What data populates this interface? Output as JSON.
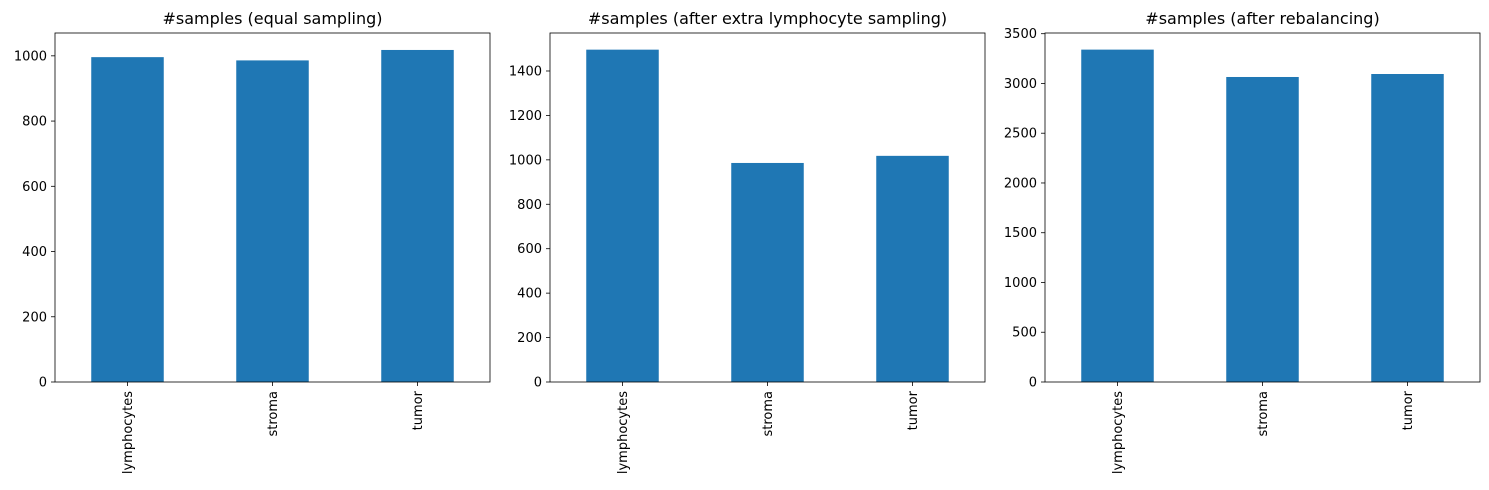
{
  "chart_data": [
    {
      "type": "bar",
      "title": "#samples (equal sampling)",
      "categories": [
        "lymphocytes",
        "stroma",
        "tumor"
      ],
      "values": [
        996,
        986,
        1018
      ],
      "ylim": [
        0,
        1070
      ],
      "yticks": [
        0,
        200,
        400,
        600,
        800,
        1000
      ],
      "xlabel": "",
      "ylabel": "",
      "grid": false,
      "color": "#1f77b4"
    },
    {
      "type": "bar",
      "title": "#samples (after extra lymphocyte sampling)",
      "categories": [
        "lymphocytes",
        "stroma",
        "tumor"
      ],
      "values": [
        1496,
        986,
        1018
      ],
      "ylim": [
        0,
        1571
      ],
      "yticks": [
        0,
        200,
        400,
        600,
        800,
        1000,
        1200,
        1400
      ],
      "xlabel": "",
      "ylabel": "",
      "grid": false,
      "color": "#1f77b4"
    },
    {
      "type": "bar",
      "title": "#samples (after rebalancing)",
      "categories": [
        "lymphocytes",
        "stroma",
        "tumor"
      ],
      "values": [
        3340,
        3065,
        3095
      ],
      "ylim": [
        0,
        3507
      ],
      "yticks": [
        0,
        500,
        1000,
        1500,
        2000,
        2500,
        3000,
        3500
      ],
      "xlabel": "",
      "ylabel": "",
      "grid": false,
      "color": "#1f77b4"
    }
  ]
}
